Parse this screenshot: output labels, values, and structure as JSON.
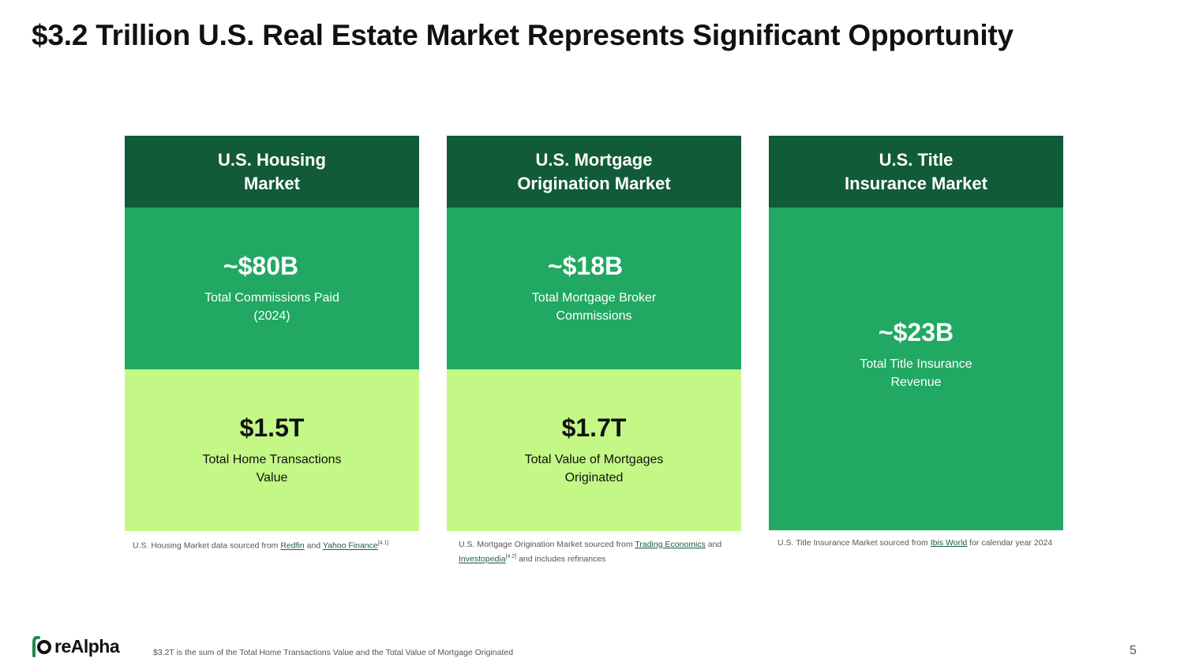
{
  "title": "$3.2 Trillion U.S. Real Estate Market Represents Significant Opportunity",
  "cards": [
    {
      "header_line1": "U.S. Housing",
      "header_line2": "Market",
      "mid_value": "~$80B",
      "mid_desc": "Total Commissions Paid\n(2024)",
      "low_value": "$1.5T",
      "low_desc": "Total Home Transactions\nValue"
    },
    {
      "header_line1": "U.S. Mortgage",
      "header_line2": "Origination Market",
      "mid_value": "~$18B",
      "mid_desc": "Total Mortgage Broker\nCommissions",
      "low_value": "$1.7T",
      "low_desc": "Total Value of Mortgages\nOriginated"
    },
    {
      "header_line1": "U.S. Title",
      "header_line2": "Insurance Market",
      "value": "~$23B",
      "desc": "Total Title Insurance\nRevenue"
    }
  ],
  "notes": {
    "housing": {
      "prefix": "U.S. Housing Market data sourced from ",
      "link1": "Redfin",
      "mid": " and ",
      "link2": "Yahoo Finance",
      "sup": "[4.1]"
    },
    "mortgage": {
      "prefix": "U.S. Mortgage Origination Market sourced from ",
      "link1": "Trading Economics",
      "mid": " and ",
      "link2": "Investopedia",
      "sup": "[4.2]",
      "suffix": " and includes refinances"
    },
    "title": {
      "prefix": "U.S. Title Insurance Market sourced from ",
      "link1": "Ibis World",
      "suffix": " for calendar year 2024"
    }
  },
  "footer": {
    "note": "$3.2T is the sum of the Total Home Transactions Value and the Total Value of Mortgage Originated",
    "logo_text": "reAlpha",
    "page_number": "5"
  },
  "colors": {
    "header": "#115b38",
    "mid": "#21a862",
    "low": "#c4f886"
  }
}
